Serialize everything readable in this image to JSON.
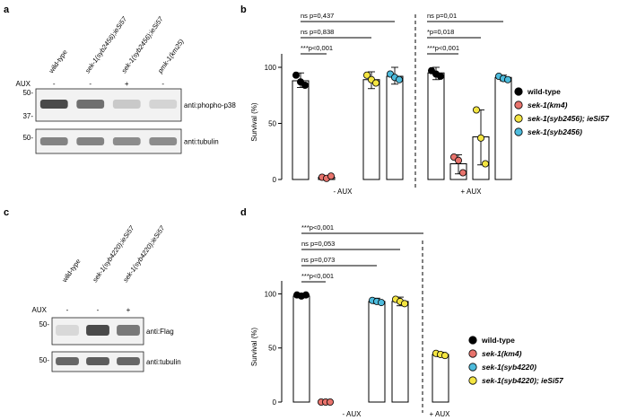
{
  "panels": {
    "a": {
      "label": "a",
      "lanes": [
        "wild-type",
        "sek-1(syb2456);ieSi57",
        "sek-1(syb2456);ieSi57",
        "pmk-1(km25)"
      ],
      "aux_label": "AUX",
      "aux": [
        "-",
        "-",
        "+",
        "-"
      ],
      "blots": [
        {
          "name": "anti:phopho-p38",
          "markers": [
            "50-",
            "37-"
          ],
          "intensity": [
            0.85,
            0.65,
            0.18,
            0.12
          ]
        },
        {
          "name": "anti:tubulin",
          "markers": [
            "50-"
          ],
          "intensity": [
            0.55,
            0.55,
            0.5,
            0.5
          ]
        }
      ]
    },
    "c": {
      "label": "c",
      "lanes": [
        "wild-type",
        "sek-1(syb4220);ieSi57",
        "sek-1(syb4220);ieSi57"
      ],
      "aux_label": "AUX",
      "aux": [
        "-",
        "-",
        "+"
      ],
      "blots": [
        {
          "name": "anti:Flag",
          "markers": [
            "50-"
          ],
          "intensity": [
            0.1,
            0.85,
            0.6
          ]
        },
        {
          "name": "anti:tubulin",
          "markers": [
            "50-"
          ],
          "intensity": [
            0.7,
            0.75,
            0.7
          ]
        }
      ]
    }
  },
  "chart_data": [
    {
      "panel": "b",
      "type": "bar",
      "ylabel": "Survival (%)",
      "yticks": [
        "0",
        "50",
        "100"
      ],
      "ylim": [
        0,
        112
      ],
      "groups": [
        "- AUX",
        "+ AUX"
      ],
      "series": [
        {
          "name": "wild-type",
          "color": "#000000",
          "values": [
            88,
            95
          ],
          "points": [
            [
              93,
              87,
              84
            ],
            [
              97,
              94,
              92
            ]
          ],
          "err": [
            [
              82,
              95
            ],
            [
              89,
              100
            ]
          ]
        },
        {
          "name": "sek-1(km4)",
          "color": "#e8736c",
          "values": [
            2,
            14
          ],
          "points": [
            [
              2,
              1,
              3
            ],
            [
              20,
              17,
              6
            ]
          ],
          "err": [
            [
              0,
              3
            ],
            [
              5,
              22
            ]
          ]
        },
        {
          "name": "sek-1(syb2456); ieSi57",
          "color": "#f4e542",
          "values": [
            89,
            38
          ],
          "points": [
            [
              93,
              89,
              86
            ],
            [
              62,
              37,
              14
            ]
          ],
          "err": [
            [
              81,
              96
            ],
            [
              13,
              62
            ]
          ]
        },
        {
          "name": "sek-1(syb2456)",
          "color": "#4dbbdc",
          "values": [
            92,
            91
          ],
          "points": [
            [
              94,
              91,
              89
            ],
            [
              92,
              90,
              89
            ]
          ],
          "err": [
            [
              85,
              100
            ],
            [
              88,
              93
            ]
          ]
        }
      ],
      "comparisons": [
        {
          "text": "ns p=0,437"
        },
        {
          "text": "ns p=0,838"
        },
        {
          "text": "***p<0,001"
        },
        {
          "text": "ns p=0,01"
        },
        {
          "text": "*p=0,018"
        },
        {
          "text": "***p<0,001"
        }
      ],
      "legend_position": "right"
    },
    {
      "panel": "d",
      "type": "bar",
      "ylabel": "Survival (%)",
      "yticks": [
        "0",
        "50",
        "100"
      ],
      "ylim": [
        0,
        112
      ],
      "groups": [
        "- AUX",
        "+ AUX"
      ],
      "series": [
        {
          "name": "wild-type",
          "color": "#000000",
          "values": [
            98
          ],
          "points": [
            [
              99,
              98,
              99
            ]
          ],
          "err": [
            [
              97,
              100
            ]
          ]
        },
        {
          "name": "sek-1(km4)",
          "color": "#e8736c",
          "values": [
            0
          ],
          "points": [
            [
              0,
              0,
              0
            ]
          ],
          "err": [
            [
              0,
              0
            ]
          ]
        },
        {
          "name": "sek-1(syb4220)",
          "color": "#4dbbdc",
          "values": [
            93
          ],
          "points": [
            [
              94,
              93,
              92
            ]
          ],
          "err": [
            [
              91,
              96
            ]
          ]
        },
        {
          "name": "sek-1(syb4220); ieSi57",
          "color": "#f4e542",
          "values": [
            93,
            44
          ],
          "points": [
            [
              95,
              93,
              91
            ],
            [
              45,
              44,
              43
            ]
          ],
          "err": [
            [
              89,
              97
            ],
            [
              42,
              46
            ]
          ]
        }
      ],
      "comparisons": [
        {
          "text": "***p<0,001"
        },
        {
          "text": "ns p=0,053"
        },
        {
          "text": "ns p=0,073"
        },
        {
          "text": "***p<0,001"
        }
      ],
      "legend_position": "right"
    }
  ]
}
